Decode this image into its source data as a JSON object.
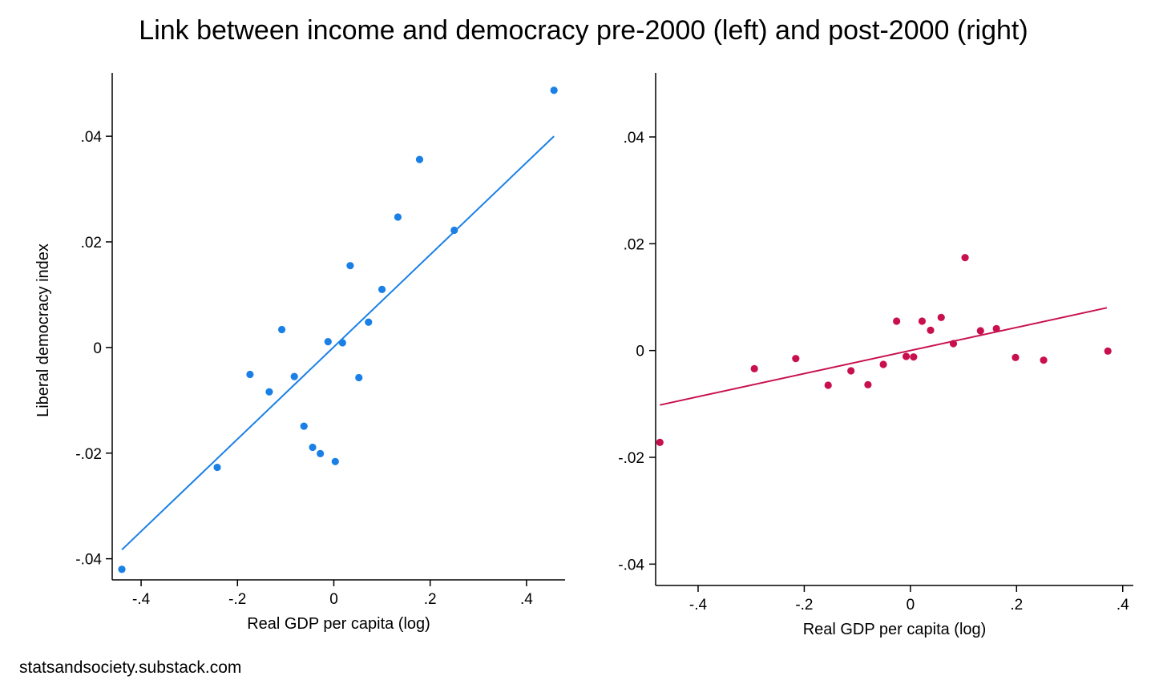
{
  "title": "Link between income and democracy pre-2000 (left) and post-2000 (right)",
  "footer": "statsandsociety.substack.com",
  "chart_data": [
    {
      "type": "scatter",
      "panel": "left",
      "subtitle": "pre-2000",
      "xlabel": "Real GDP per capita (log)",
      "ylabel": "Liberal democracy index",
      "xlim": [
        -0.46,
        0.48
      ],
      "ylim": [
        -0.044,
        0.052
      ],
      "xticks": [
        -0.4,
        -0.2,
        0,
        0.2,
        0.4
      ],
      "xtick_labels": [
        "-.4",
        "-.2",
        "0",
        ".2",
        ".4"
      ],
      "yticks": [
        -0.04,
        -0.02,
        0,
        0.02,
        0.04
      ],
      "ytick_labels": [
        "-.04",
        "-.02",
        "0",
        ".02",
        ".04"
      ],
      "grid": false,
      "color": "#1a80e6",
      "points": [
        {
          "x": -0.44,
          "y": -0.042
        },
        {
          "x": -0.242,
          "y": -0.0227
        },
        {
          "x": -0.174,
          "y": -0.0051
        },
        {
          "x": -0.134,
          "y": -0.0084
        },
        {
          "x": -0.108,
          "y": 0.0034
        },
        {
          "x": -0.082,
          "y": -0.0055
        },
        {
          "x": -0.062,
          "y": -0.0149
        },
        {
          "x": -0.044,
          "y": -0.0189
        },
        {
          "x": -0.028,
          "y": -0.0201
        },
        {
          "x": -0.012,
          "y": 0.0011
        },
        {
          "x": 0.003,
          "y": -0.0216
        },
        {
          "x": 0.018,
          "y": 0.0009
        },
        {
          "x": 0.034,
          "y": 0.0155
        },
        {
          "x": 0.052,
          "y": -0.0057
        },
        {
          "x": 0.072,
          "y": 0.0048
        },
        {
          "x": 0.1,
          "y": 0.011
        },
        {
          "x": 0.133,
          "y": 0.0247
        },
        {
          "x": 0.178,
          "y": 0.0356
        },
        {
          "x": 0.25,
          "y": 0.0222
        },
        {
          "x": 0.457,
          "y": 0.0487
        }
      ],
      "fit_line": {
        "x": [
          -0.44,
          0.457
        ],
        "y": [
          -0.0383,
          0.04
        ]
      }
    },
    {
      "type": "scatter",
      "panel": "right",
      "subtitle": "post-2000",
      "xlabel": "Real GDP per capita (log)",
      "ylabel": "",
      "xlim": [
        -0.48,
        0.42
      ],
      "ylim": [
        -0.044,
        0.052
      ],
      "xticks": [
        -0.4,
        -0.2,
        0,
        0.2,
        0.4
      ],
      "xtick_labels": [
        "-.4",
        "-.2",
        "0",
        ".2",
        ".4"
      ],
      "yticks": [
        -0.04,
        -0.02,
        0,
        0.02,
        0.04
      ],
      "ytick_labels": [
        "-.04",
        "-.02",
        "0",
        ".02",
        ".04"
      ],
      "grid": false,
      "color": "#c8104e",
      "points": [
        {
          "x": -0.472,
          "y": -0.0172
        },
        {
          "x": -0.294,
          "y": -0.0034
        },
        {
          "x": -0.216,
          "y": -0.0015
        },
        {
          "x": -0.155,
          "y": -0.0065
        },
        {
          "x": -0.112,
          "y": -0.0038
        },
        {
          "x": -0.08,
          "y": -0.0064
        },
        {
          "x": -0.051,
          "y": -0.0026
        },
        {
          "x": -0.026,
          "y": 0.0055
        },
        {
          "x": -0.008,
          "y": -0.0011
        },
        {
          "x": 0.006,
          "y": -0.0012
        },
        {
          "x": 0.022,
          "y": 0.0055
        },
        {
          "x": 0.038,
          "y": 0.0038
        },
        {
          "x": 0.058,
          "y": 0.0062
        },
        {
          "x": 0.081,
          "y": 0.0013
        },
        {
          "x": 0.103,
          "y": 0.0174
        },
        {
          "x": 0.132,
          "y": 0.0037
        },
        {
          "x": 0.162,
          "y": 0.0041
        },
        {
          "x": 0.198,
          "y": -0.0013
        },
        {
          "x": 0.251,
          "y": -0.0018
        },
        {
          "x": 0.372,
          "y": -0.0001
        }
      ],
      "fit_line": {
        "x": [
          -0.472,
          0.37
        ],
        "y": [
          -0.0102,
          0.008
        ]
      }
    }
  ]
}
